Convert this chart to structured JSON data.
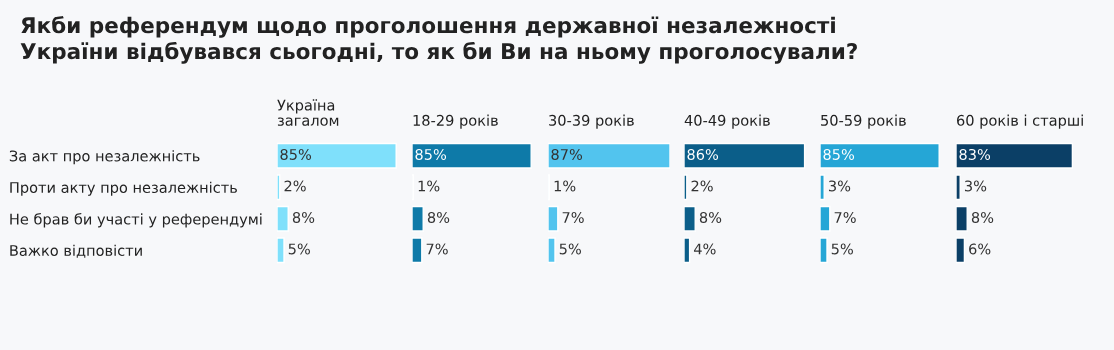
{
  "chart_data": [
    {
      "type": "bar",
      "orientation": "horizontal",
      "title": "Якби референдум щодо проголошення державної незалежності\nУкраїни відбувався сьогодні, то як би Ви на ньому проголосували?",
      "subtitle": "Україна\nзагалом",
      "categories": [
        "За акт про незалежність",
        "Проти акту про незалежність",
        "Не брав би участі у референдумі",
        "Важко відповісти"
      ],
      "values": [
        85,
        2,
        8,
        5
      ],
      "value_labels": [
        "85%",
        "2%",
        "8%",
        "5%"
      ],
      "color": "#7fe0fb",
      "tick_labels": "y"
    },
    {
      "type": "bar",
      "orientation": "horizontal",
      "subtitle": "18-29 років",
      "categories": [
        null,
        null,
        null,
        null
      ],
      "values": [
        85,
        1,
        8,
        7
      ],
      "value_labels": [
        "85%",
        "1%",
        "8%",
        "7%"
      ],
      "color": "#0e7aa8"
    },
    {
      "type": "bar",
      "orientation": "horizontal",
      "subtitle": "30-39 років",
      "categories": [
        null,
        null,
        null,
        null
      ],
      "values": [
        87,
        1,
        7,
        5
      ],
      "value_labels": [
        "87%",
        "1%",
        "7%",
        "5%"
      ],
      "color": "#52c4ee"
    },
    {
      "type": "bar",
      "orientation": "horizontal",
      "subtitle": "40-49 років",
      "categories": [
        null,
        null,
        null,
        null
      ],
      "values": [
        86,
        2,
        8,
        4
      ],
      "value_labels": [
        "86%",
        "2%",
        "8%",
        "4%"
      ],
      "color": "#0b5e89"
    },
    {
      "type": "bar",
      "orientation": "horizontal",
      "subtitle": "50-59 років",
      "categories": [
        null,
        null,
        null,
        null
      ],
      "values": [
        85,
        3,
        7,
        5
      ],
      "value_labels": [
        "85%",
        "3%",
        "7%",
        "5%"
      ],
      "color": "#25a6d6"
    },
    {
      "type": "bar",
      "orientation": "horizontal",
      "subtitle": "60 років і старші",
      "categories": [
        null,
        null,
        null,
        null
      ],
      "values": [
        83,
        3,
        8,
        6
      ],
      "value_labels": [
        "83%",
        "3%",
        "8%",
        "6%"
      ],
      "color": "#0b3f66"
    }
  ]
}
